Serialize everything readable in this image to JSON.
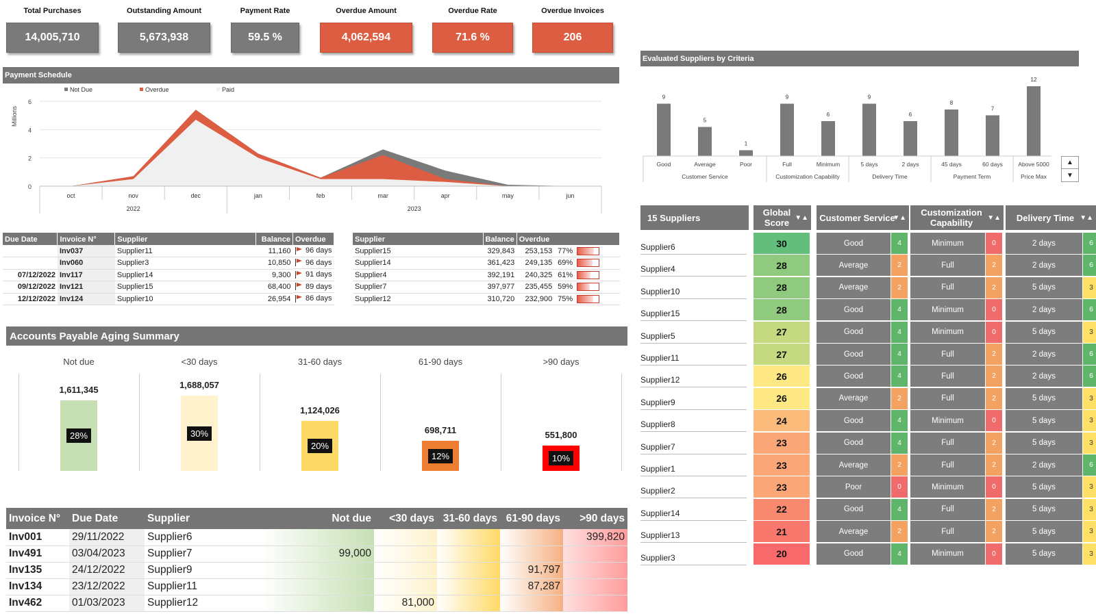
{
  "kpis": [
    {
      "label": "Total Purchases",
      "value": "14,005,710",
      "style": "grey"
    },
    {
      "label": "Outstanding Amount",
      "value": "5,673,938",
      "style": "grey"
    },
    {
      "label": "Payment Rate",
      "value": "59.5 %",
      "style": "grey"
    },
    {
      "label": "Overdue Amount",
      "value": "4,062,594",
      "style": "red"
    },
    {
      "label": "Overdue Rate",
      "value": "71.6 %",
      "style": "red"
    },
    {
      "label": "Overdue Invoices",
      "value": "206",
      "style": "red"
    }
  ],
  "payment_schedule": {
    "title": "Payment Schedule",
    "legend": [
      "Not Due",
      "Overdue",
      "Paid"
    ],
    "ylabel": "Millions",
    "yticks": [
      "0",
      "2",
      "4",
      "6"
    ],
    "months": [
      "oct",
      "nov",
      "dec",
      "jan",
      "feb",
      "mar",
      "apr",
      "may",
      "jun"
    ],
    "years": [
      "2022",
      "2023"
    ]
  },
  "chart_data": [
    {
      "type": "area",
      "title": "Payment Schedule",
      "ylabel": "Millions",
      "ylim": [
        0,
        6
      ],
      "categories": [
        "oct",
        "nov",
        "dec",
        "jan",
        "feb",
        "mar",
        "apr",
        "may",
        "jun"
      ],
      "series": [
        {
          "name": "Paid",
          "values": [
            0,
            0.5,
            4.7,
            2.0,
            0.5,
            0.5,
            0.3,
            0,
            0
          ]
        },
        {
          "name": "Overdue",
          "values": [
            0,
            0.7,
            5.4,
            2.3,
            0.6,
            2.2,
            0.5,
            0,
            0
          ]
        },
        {
          "name": "Not Due",
          "values": [
            0,
            0.7,
            5.4,
            2.3,
            0.6,
            2.6,
            1.1,
            0.1,
            0
          ]
        }
      ],
      "legend": "top-left"
    },
    {
      "type": "bar",
      "title": "Evaluated Suppliers by Criteria",
      "categories": [
        "Good",
        "Average",
        "Poor",
        "Full",
        "Minimum",
        "5 days",
        "2 days",
        "45 days",
        "60 days",
        "Above 5000"
      ],
      "groups": [
        "Customer Service",
        "Customization Capability",
        "Delivery Time",
        "Payment Term",
        "Price Max"
      ],
      "values": [
        9,
        5,
        1,
        9,
        6,
        9,
        6,
        8,
        7,
        12
      ]
    }
  ],
  "overdue_invoices": {
    "headers": [
      "Due Date",
      "Invoice N°",
      "Supplier",
      "Balance",
      "Overdue"
    ],
    "rows": [
      [
        "",
        "Inv037",
        "Supplier11",
        "11,160",
        "96 days"
      ],
      [
        "",
        "Inv060",
        "Supplier3",
        "10,850",
        "96 days"
      ],
      [
        "07/12/2022",
        "Inv117",
        "Supplier14",
        "9,300",
        "91 days"
      ],
      [
        "09/12/2022",
        "Inv121",
        "Supplier15",
        "68,400",
        "89 days"
      ],
      [
        "12/12/2022",
        "Inv124",
        "Supplier10",
        "26,954",
        "86 days"
      ]
    ]
  },
  "overdue_suppliers": {
    "headers": [
      "Supplier",
      "Balance",
      "Overdue"
    ],
    "rows": [
      {
        "supplier": "Supplier15",
        "balance": "329,843",
        "overdue": "253,153",
        "pct": "77%",
        "ratio": 0.77
      },
      {
        "supplier": "Supplier14",
        "balance": "361,423",
        "overdue": "249,135",
        "pct": "69%",
        "ratio": 0.69
      },
      {
        "supplier": "Supplier4",
        "balance": "392,191",
        "overdue": "240,325",
        "pct": "61%",
        "ratio": 0.61
      },
      {
        "supplier": "Supplier7",
        "balance": "397,977",
        "overdue": "235,455",
        "pct": "59%",
        "ratio": 0.59
      },
      {
        "supplier": "Supplier12",
        "balance": "310,720",
        "overdue": "232,900",
        "pct": "75%",
        "ratio": 0.75
      }
    ]
  },
  "aging": {
    "title": "Accounts Payable Aging Summary",
    "buckets": [
      {
        "label": "Not due",
        "value": "1,611,345",
        "pct": "28%",
        "ratio": 0.28,
        "color": "#c6e0b4"
      },
      {
        "label": "<30 days",
        "value": "1,688,057",
        "pct": "30%",
        "ratio": 0.3,
        "color": "#fff2cc"
      },
      {
        "label": "31-60 days",
        "value": "1,124,026",
        "pct": "20%",
        "ratio": 0.2,
        "color": "#ffd966"
      },
      {
        "label": "61-90 days",
        "value": "698,711",
        "pct": "12%",
        "ratio": 0.12,
        "color": "#ed7d31"
      },
      {
        "label": ">90 days",
        "value": "551,800",
        "pct": "10%",
        "ratio": 0.1,
        "color": "#ff0000"
      }
    ]
  },
  "aging_detail": {
    "headers": [
      "Invoice N°",
      "Due Date",
      "Supplier",
      "Not due",
      "<30 days",
      "31-60 days",
      "61-90 days",
      ">90 days"
    ],
    "rows": [
      [
        "Inv001",
        "29/11/2022",
        "Supplier6",
        "",
        "",
        "",
        "",
        "399,820"
      ],
      [
        "Inv491",
        "03/04/2023",
        "Supplier7",
        "99,000",
        "",
        "",
        "",
        ""
      ],
      [
        "Inv135",
        "24/12/2022",
        "Supplier9",
        "",
        "",
        "",
        "91,797",
        ""
      ],
      [
        "Inv134",
        "23/12/2022",
        "Supplier11",
        "",
        "",
        "",
        "87,287",
        ""
      ],
      [
        "Inv462",
        "01/03/2023",
        "Supplier12",
        "",
        "81,000",
        "",
        "",
        ""
      ]
    ]
  },
  "criteria_title": "Evaluated Suppliers by Criteria",
  "scroll": {
    "up": "▲",
    "down": "▼"
  },
  "supplier_table": {
    "count_label": "15 Suppliers",
    "headers": [
      "Global Score",
      "Customer Service",
      "Customization Capability",
      "Delivery Time"
    ],
    "sort_glyph": "▼▲",
    "rows": [
      {
        "name": "Supplier6",
        "score": "30",
        "cs": "Good",
        "cs_n": "4",
        "cc": "Minimum",
        "cc_n": "0",
        "dt": "2 days",
        "dt_n": "6"
      },
      {
        "name": "Supplier4",
        "score": "28",
        "cs": "Average",
        "cs_n": "2",
        "cc": "Full",
        "cc_n": "2",
        "dt": "2 days",
        "dt_n": "6"
      },
      {
        "name": "Supplier10",
        "score": "28",
        "cs": "Average",
        "cs_n": "2",
        "cc": "Full",
        "cc_n": "2",
        "dt": "5 days",
        "dt_n": "3"
      },
      {
        "name": "Supplier15",
        "score": "28",
        "cs": "Good",
        "cs_n": "4",
        "cc": "Minimum",
        "cc_n": "0",
        "dt": "2 days",
        "dt_n": "6"
      },
      {
        "name": "Supplier5",
        "score": "27",
        "cs": "Good",
        "cs_n": "4",
        "cc": "Minimum",
        "cc_n": "0",
        "dt": "5 days",
        "dt_n": "3"
      },
      {
        "name": "Supplier11",
        "score": "27",
        "cs": "Good",
        "cs_n": "4",
        "cc": "Full",
        "cc_n": "2",
        "dt": "2 days",
        "dt_n": "6"
      },
      {
        "name": "Supplier12",
        "score": "26",
        "cs": "Good",
        "cs_n": "4",
        "cc": "Full",
        "cc_n": "2",
        "dt": "2 days",
        "dt_n": "6"
      },
      {
        "name": "Supplier9",
        "score": "26",
        "cs": "Average",
        "cs_n": "2",
        "cc": "Full",
        "cc_n": "2",
        "dt": "5 days",
        "dt_n": "3"
      },
      {
        "name": "Supplier8",
        "score": "24",
        "cs": "Good",
        "cs_n": "4",
        "cc": "Minimum",
        "cc_n": "0",
        "dt": "5 days",
        "dt_n": "3"
      },
      {
        "name": "Supplier7",
        "score": "23",
        "cs": "Good",
        "cs_n": "4",
        "cc": "Full",
        "cc_n": "2",
        "dt": "5 days",
        "dt_n": "3"
      },
      {
        "name": "Supplier1",
        "score": "23",
        "cs": "Average",
        "cs_n": "2",
        "cc": "Full",
        "cc_n": "2",
        "dt": "2 days",
        "dt_n": "6"
      },
      {
        "name": "Supplier2",
        "score": "23",
        "cs": "Poor",
        "cs_n": "0",
        "cc": "Minimum",
        "cc_n": "0",
        "dt": "5 days",
        "dt_n": "3"
      },
      {
        "name": "Supplier14",
        "score": "22",
        "cs": "Good",
        "cs_n": "4",
        "cc": "Full",
        "cc_n": "2",
        "dt": "5 days",
        "dt_n": "3"
      },
      {
        "name": "Supplier13",
        "score": "21",
        "cs": "Average",
        "cs_n": "2",
        "cc": "Full",
        "cc_n": "2",
        "dt": "5 days",
        "dt_n": "3"
      },
      {
        "name": "Supplier3",
        "score": "20",
        "cs": "Good",
        "cs_n": "4",
        "cc": "Minimum",
        "cc_n": "0",
        "dt": "5 days",
        "dt_n": "3"
      }
    ]
  },
  "colors": {
    "accent_red": "#dc5d41",
    "header_grey": "#757575",
    "kpi_grey": "#7a7a7a"
  }
}
